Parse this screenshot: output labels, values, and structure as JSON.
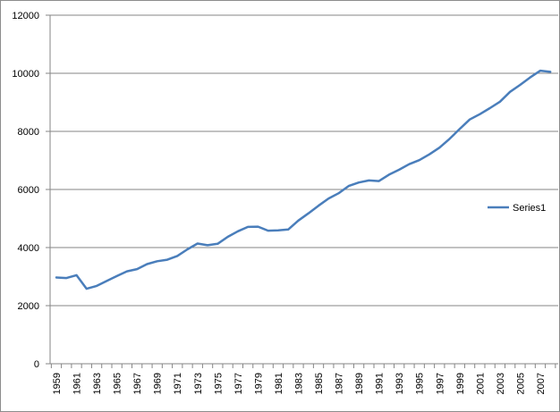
{
  "chart_data": {
    "type": "line",
    "title": "",
    "xlabel": "",
    "ylabel": "",
    "ylim": [
      0,
      12000
    ],
    "yticks": [
      0,
      2000,
      4000,
      6000,
      8000,
      10000,
      12000
    ],
    "grid": "horizontal",
    "legend_position": "right",
    "x_tick_labels": [
      "1959",
      "1961",
      "1963",
      "1965",
      "1967",
      "1969",
      "1971",
      "1973",
      "1975",
      "1977",
      "1979",
      "1981",
      "1983",
      "1985",
      "1987",
      "1989",
      "1991",
      "1993",
      "1995",
      "1997",
      "1999",
      "2001",
      "2003",
      "2005",
      "2007"
    ],
    "x": [
      1959,
      1960,
      1961,
      1962,
      1963,
      1964,
      1965,
      1966,
      1967,
      1968,
      1969,
      1970,
      1971,
      1972,
      1973,
      1974,
      1975,
      1976,
      1977,
      1978,
      1979,
      1980,
      1981,
      1982,
      1983,
      1984,
      1985,
      1986,
      1987,
      1988,
      1989,
      1990,
      1991,
      1992,
      1993,
      1994,
      1995,
      1996,
      1997,
      1998,
      1999,
      2000,
      2001,
      2002,
      2003,
      2004,
      2005,
      2006,
      2007,
      2008
    ],
    "series": [
      {
        "name": "Series1",
        "color": "#4a7ebb",
        "values": [
          2970,
          2950,
          3050,
          2580,
          2680,
          2850,
          3020,
          3180,
          3260,
          3430,
          3530,
          3580,
          3710,
          3940,
          4140,
          4080,
          4130,
          4370,
          4560,
          4710,
          4720,
          4580,
          4590,
          4620,
          4930,
          5180,
          5440,
          5690,
          5870,
          6120,
          6240,
          6310,
          6290,
          6510,
          6680,
          6870,
          7010,
          7210,
          7440,
          7740,
          8080,
          8410,
          8590,
          8800,
          9020,
          9360,
          9600,
          9860,
          10090,
          10050
        ]
      }
    ]
  }
}
